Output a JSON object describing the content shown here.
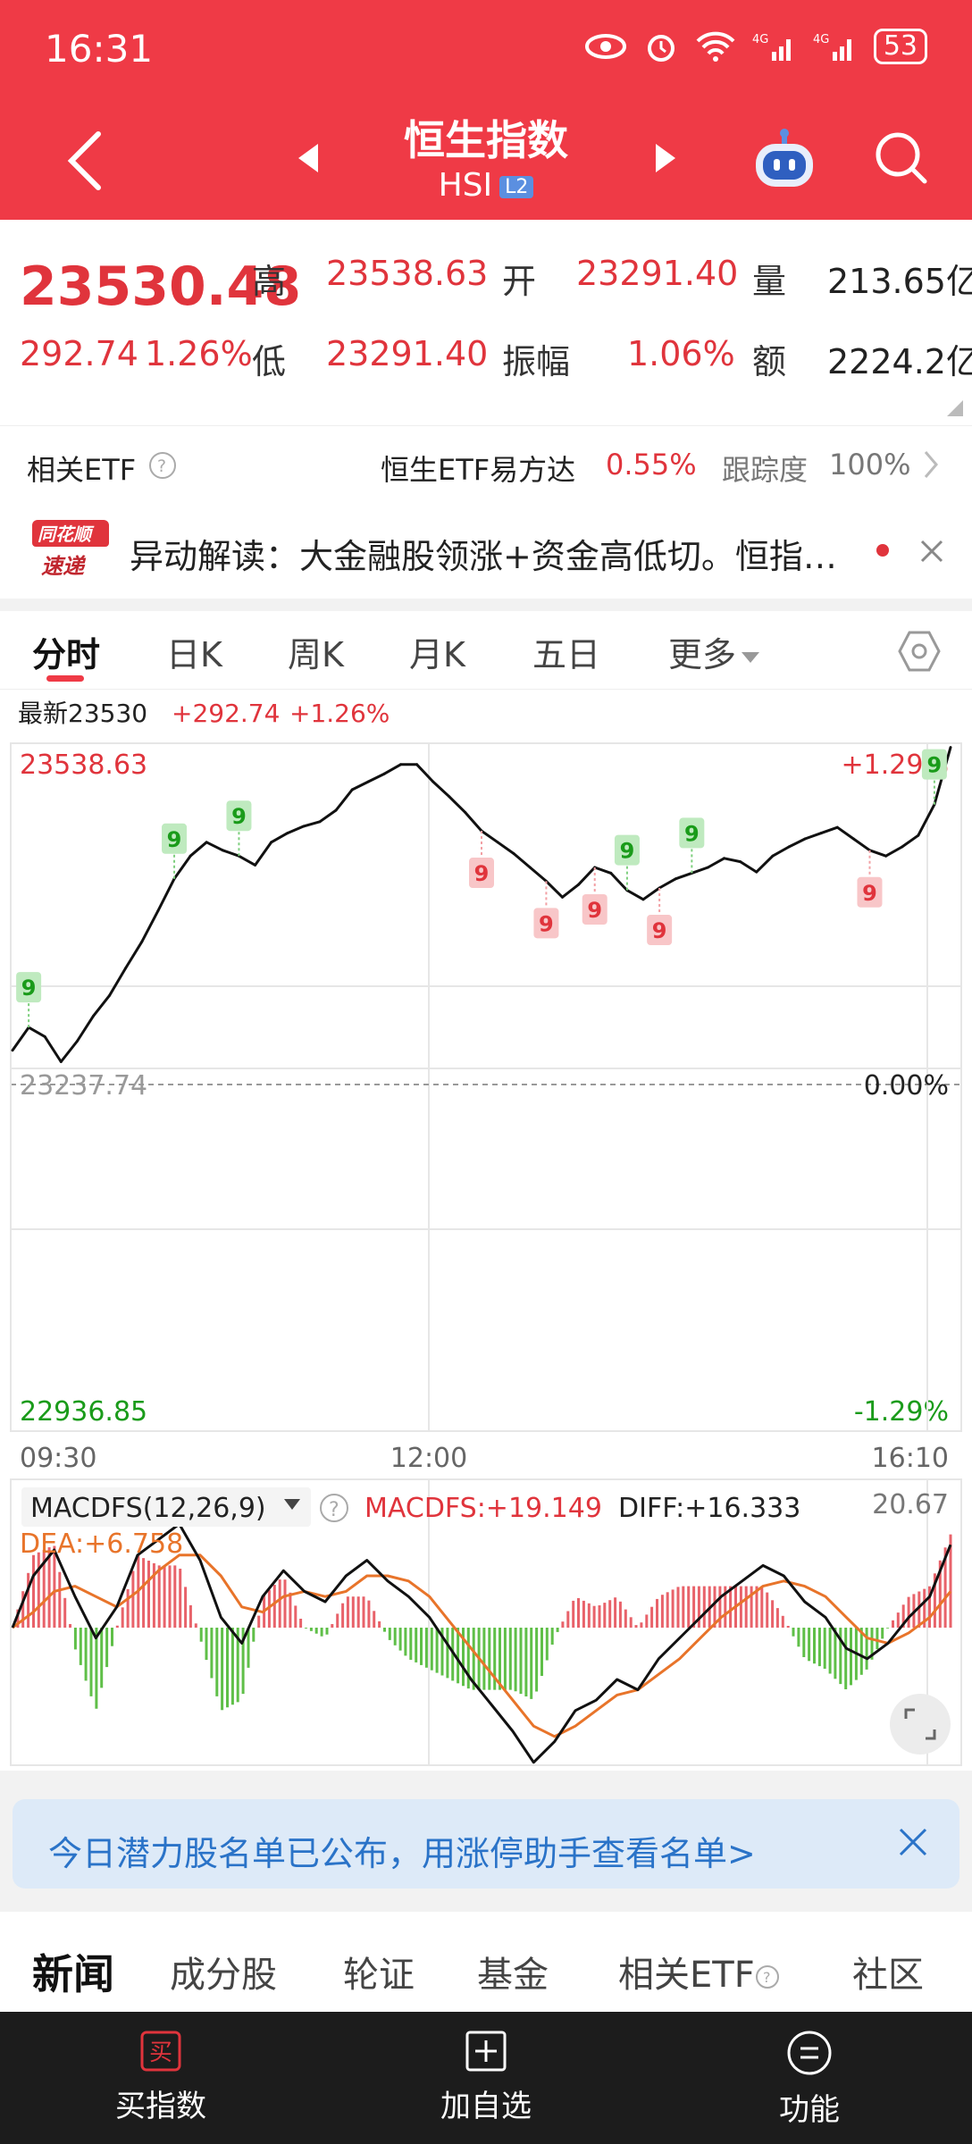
{
  "status_bar": {
    "time": "16:31",
    "battery": "53"
  },
  "header": {
    "title": "恒生指数",
    "code": "HSI",
    "level": "L2"
  },
  "quote": {
    "price": "23530.48",
    "change": "292.74",
    "change_pct": "1.26%",
    "high_label": "高",
    "high": "23538.63",
    "open_label": "开",
    "open": "23291.40",
    "volume_label": "量",
    "volume": "213.65亿",
    "low_label": "低",
    "low": "23291.40",
    "amplitude_label": "振幅",
    "amplitude": "1.06%",
    "turnover_label": "额",
    "turnover": "2224.2亿"
  },
  "etf_row": {
    "label": "相关ETF",
    "etf_name": "恒生ETF易方达",
    "etf_change": "0.55%",
    "tracking_label": "跟踪度",
    "tracking_value": "100%"
  },
  "ticker": {
    "logo_line1": "同花顺",
    "logo_line2": "速递",
    "text": "异动解读：大金融股领涨+资金高低切。恒指…"
  },
  "chart_tabs": [
    "分时",
    "日K",
    "周K",
    "月K",
    "五日",
    "更多"
  ],
  "chart_info": {
    "latest_label": "最新23530",
    "change": "+292.74",
    "change_pct": "+1.26%"
  },
  "chart_data": {
    "type": "line",
    "title": "",
    "price_axis": {
      "top": "23538.63",
      "mid": "23237.74",
      "bottom": "22936.85"
    },
    "pct_axis": {
      "top": "+1.29%",
      "mid": "0.00%",
      "bottom": "-1.29%"
    },
    "x_ticks": [
      "09:30",
      "12:00",
      "16:10"
    ],
    "ylim": [
      22936.85,
      23538.63
    ],
    "intraday_prices": [
      23270,
      23290,
      23282,
      23260,
      23278,
      23300,
      23318,
      23342,
      23365,
      23392,
      23420,
      23440,
      23452,
      23445,
      23440,
      23432,
      23452,
      23460,
      23466,
      23470,
      23480,
      23498,
      23505,
      23512,
      23520,
      23520,
      23505,
      23492,
      23478,
      23462,
      23452,
      23442,
      23430,
      23418,
      23404,
      23415,
      23430,
      23425,
      23410,
      23402,
      23412,
      23420,
      23425,
      23430,
      23438,
      23435,
      23426,
      23440,
      23448,
      23455,
      23460,
      23465,
      23455,
      23445,
      23440,
      23448,
      23458,
      23485,
      23535
    ],
    "td9_signals": [
      {
        "kind": "buy",
        "label": "9",
        "index": 1
      },
      {
        "kind": "buy",
        "label": "9",
        "index": 10
      },
      {
        "kind": "buy",
        "label": "9",
        "index": 14
      },
      {
        "kind": "sell",
        "label": "9",
        "index": 29
      },
      {
        "kind": "sell",
        "label": "9",
        "index": 33
      },
      {
        "kind": "sell",
        "label": "9",
        "index": 36
      },
      {
        "kind": "buy",
        "label": "9",
        "index": 38
      },
      {
        "kind": "sell",
        "label": "9",
        "index": 40
      },
      {
        "kind": "buy",
        "label": "9",
        "index": 42
      },
      {
        "kind": "sell",
        "label": "9",
        "index": 53
      },
      {
        "kind": "buy",
        "label": "9",
        "index": 57
      }
    ],
    "macd": {
      "indicator": "MACDFS(12,26,9)",
      "macdfs_label": "MACDFS:+19.149",
      "diff_label": "DIFF:+16.333",
      "dea_label": "DEA:+6.758",
      "max_label": "20.67",
      "diff": [
        0,
        10,
        15,
        6,
        -2,
        4,
        14,
        17,
        20,
        13,
        2,
        -3,
        6,
        11,
        7,
        5,
        10,
        13,
        9,
        6,
        2,
        -4,
        -10,
        -15,
        -20,
        -26,
        -22,
        -16,
        -14,
        -10,
        -12,
        -6,
        -2,
        2,
        6,
        9,
        12,
        10,
        5,
        2,
        -4,
        -6,
        -3,
        2,
        6,
        16
      ],
      "dea": [
        0,
        3,
        7,
        8,
        6,
        4,
        7,
        11,
        14,
        14,
        10,
        4,
        3,
        6,
        7,
        6,
        7,
        10,
        10,
        9,
        6,
        1,
        -4,
        -9,
        -14,
        -19,
        -21,
        -19,
        -16,
        -13,
        -12,
        -9,
        -6,
        -2,
        2,
        5,
        8,
        9,
        8,
        6,
        2,
        -2,
        -3,
        -1,
        2,
        7
      ]
    }
  },
  "colors": {
    "up": "#e0343c",
    "down": "#1a9b1a",
    "header": "#ef3a46",
    "price_line": "#111111",
    "dea": "#e8742a"
  },
  "banner": {
    "text": "今日潜力股名单已公布，用涨停助手查看名单>"
  },
  "bottom_tabs": [
    "新闻",
    "成分股",
    "轮证",
    "基金",
    "相关ETF",
    "社区"
  ],
  "bottom_nav": {
    "buy_icon_char": "买",
    "buy": "买指数",
    "watch": "加自选",
    "func": "功能"
  }
}
